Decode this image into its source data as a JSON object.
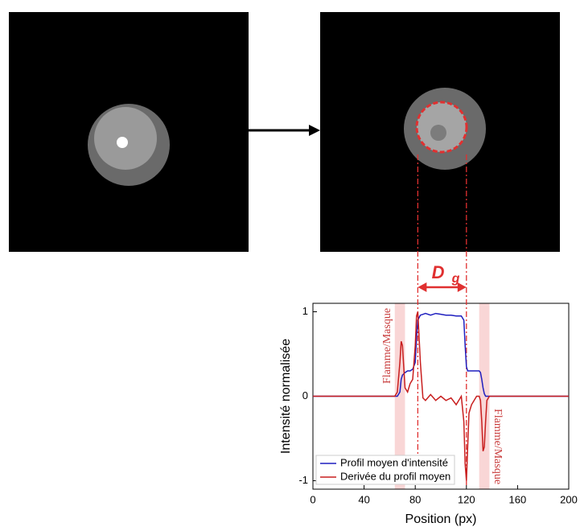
{
  "chart_data": {
    "type": "line",
    "x_label": "Position (px)",
    "y_label": "Intensité normalisée",
    "x": [
      0,
      64,
      66,
      68,
      69,
      70,
      72,
      74,
      76,
      78,
      80,
      81,
      82,
      84,
      86,
      88,
      92,
      96,
      100,
      104,
      108,
      112,
      116,
      118,
      119,
      120,
      121,
      122,
      124,
      128,
      130,
      131,
      132,
      133,
      134,
      135,
      136,
      138,
      200
    ],
    "series": [
      {
        "name": "Profil moyen d'intensité",
        "color": "#1f1fbf",
        "values": [
          0,
          0,
          0,
          0.05,
          0.2,
          0.25,
          0.28,
          0.3,
          0.3,
          0.32,
          0.4,
          0.7,
          0.9,
          0.96,
          0.97,
          0.98,
          0.96,
          0.98,
          0.97,
          0.96,
          0.96,
          0.95,
          0.95,
          0.9,
          0.6,
          0.35,
          0.3,
          0.3,
          0.3,
          0.3,
          0.3,
          0.28,
          0.2,
          0.1,
          0.03,
          0,
          0,
          0,
          0
        ]
      },
      {
        "name": "Derivée du profil moyen",
        "color": "#c81e1e",
        "values": [
          0,
          0,
          0.05,
          0.4,
          0.65,
          0.6,
          0.1,
          0.05,
          0.15,
          0.2,
          0.6,
          0.95,
          1.0,
          0.4,
          -0.02,
          -0.05,
          0.02,
          -0.05,
          0.0,
          -0.05,
          -0.02,
          -0.1,
          0.0,
          -0.3,
          -0.8,
          -1.0,
          -0.6,
          -0.2,
          -0.1,
          0,
          0,
          -0.05,
          -0.3,
          -0.65,
          -0.6,
          -0.3,
          -0.05,
          0,
          0
        ]
      }
    ],
    "xlim": [
      0,
      200
    ],
    "xticks": [
      0,
      40,
      80,
      120,
      160,
      200
    ],
    "ylim": [
      -1.1,
      1.1
    ],
    "yticks": [
      -1,
      0,
      1
    ],
    "bands": [
      [
        64,
        72
      ],
      [
        130,
        138
      ]
    ],
    "band_label": "Flamme/Masque",
    "vlines": [
      82,
      120
    ],
    "dg_label": "D",
    "dg_subscript": "g",
    "legend": "lower left"
  }
}
